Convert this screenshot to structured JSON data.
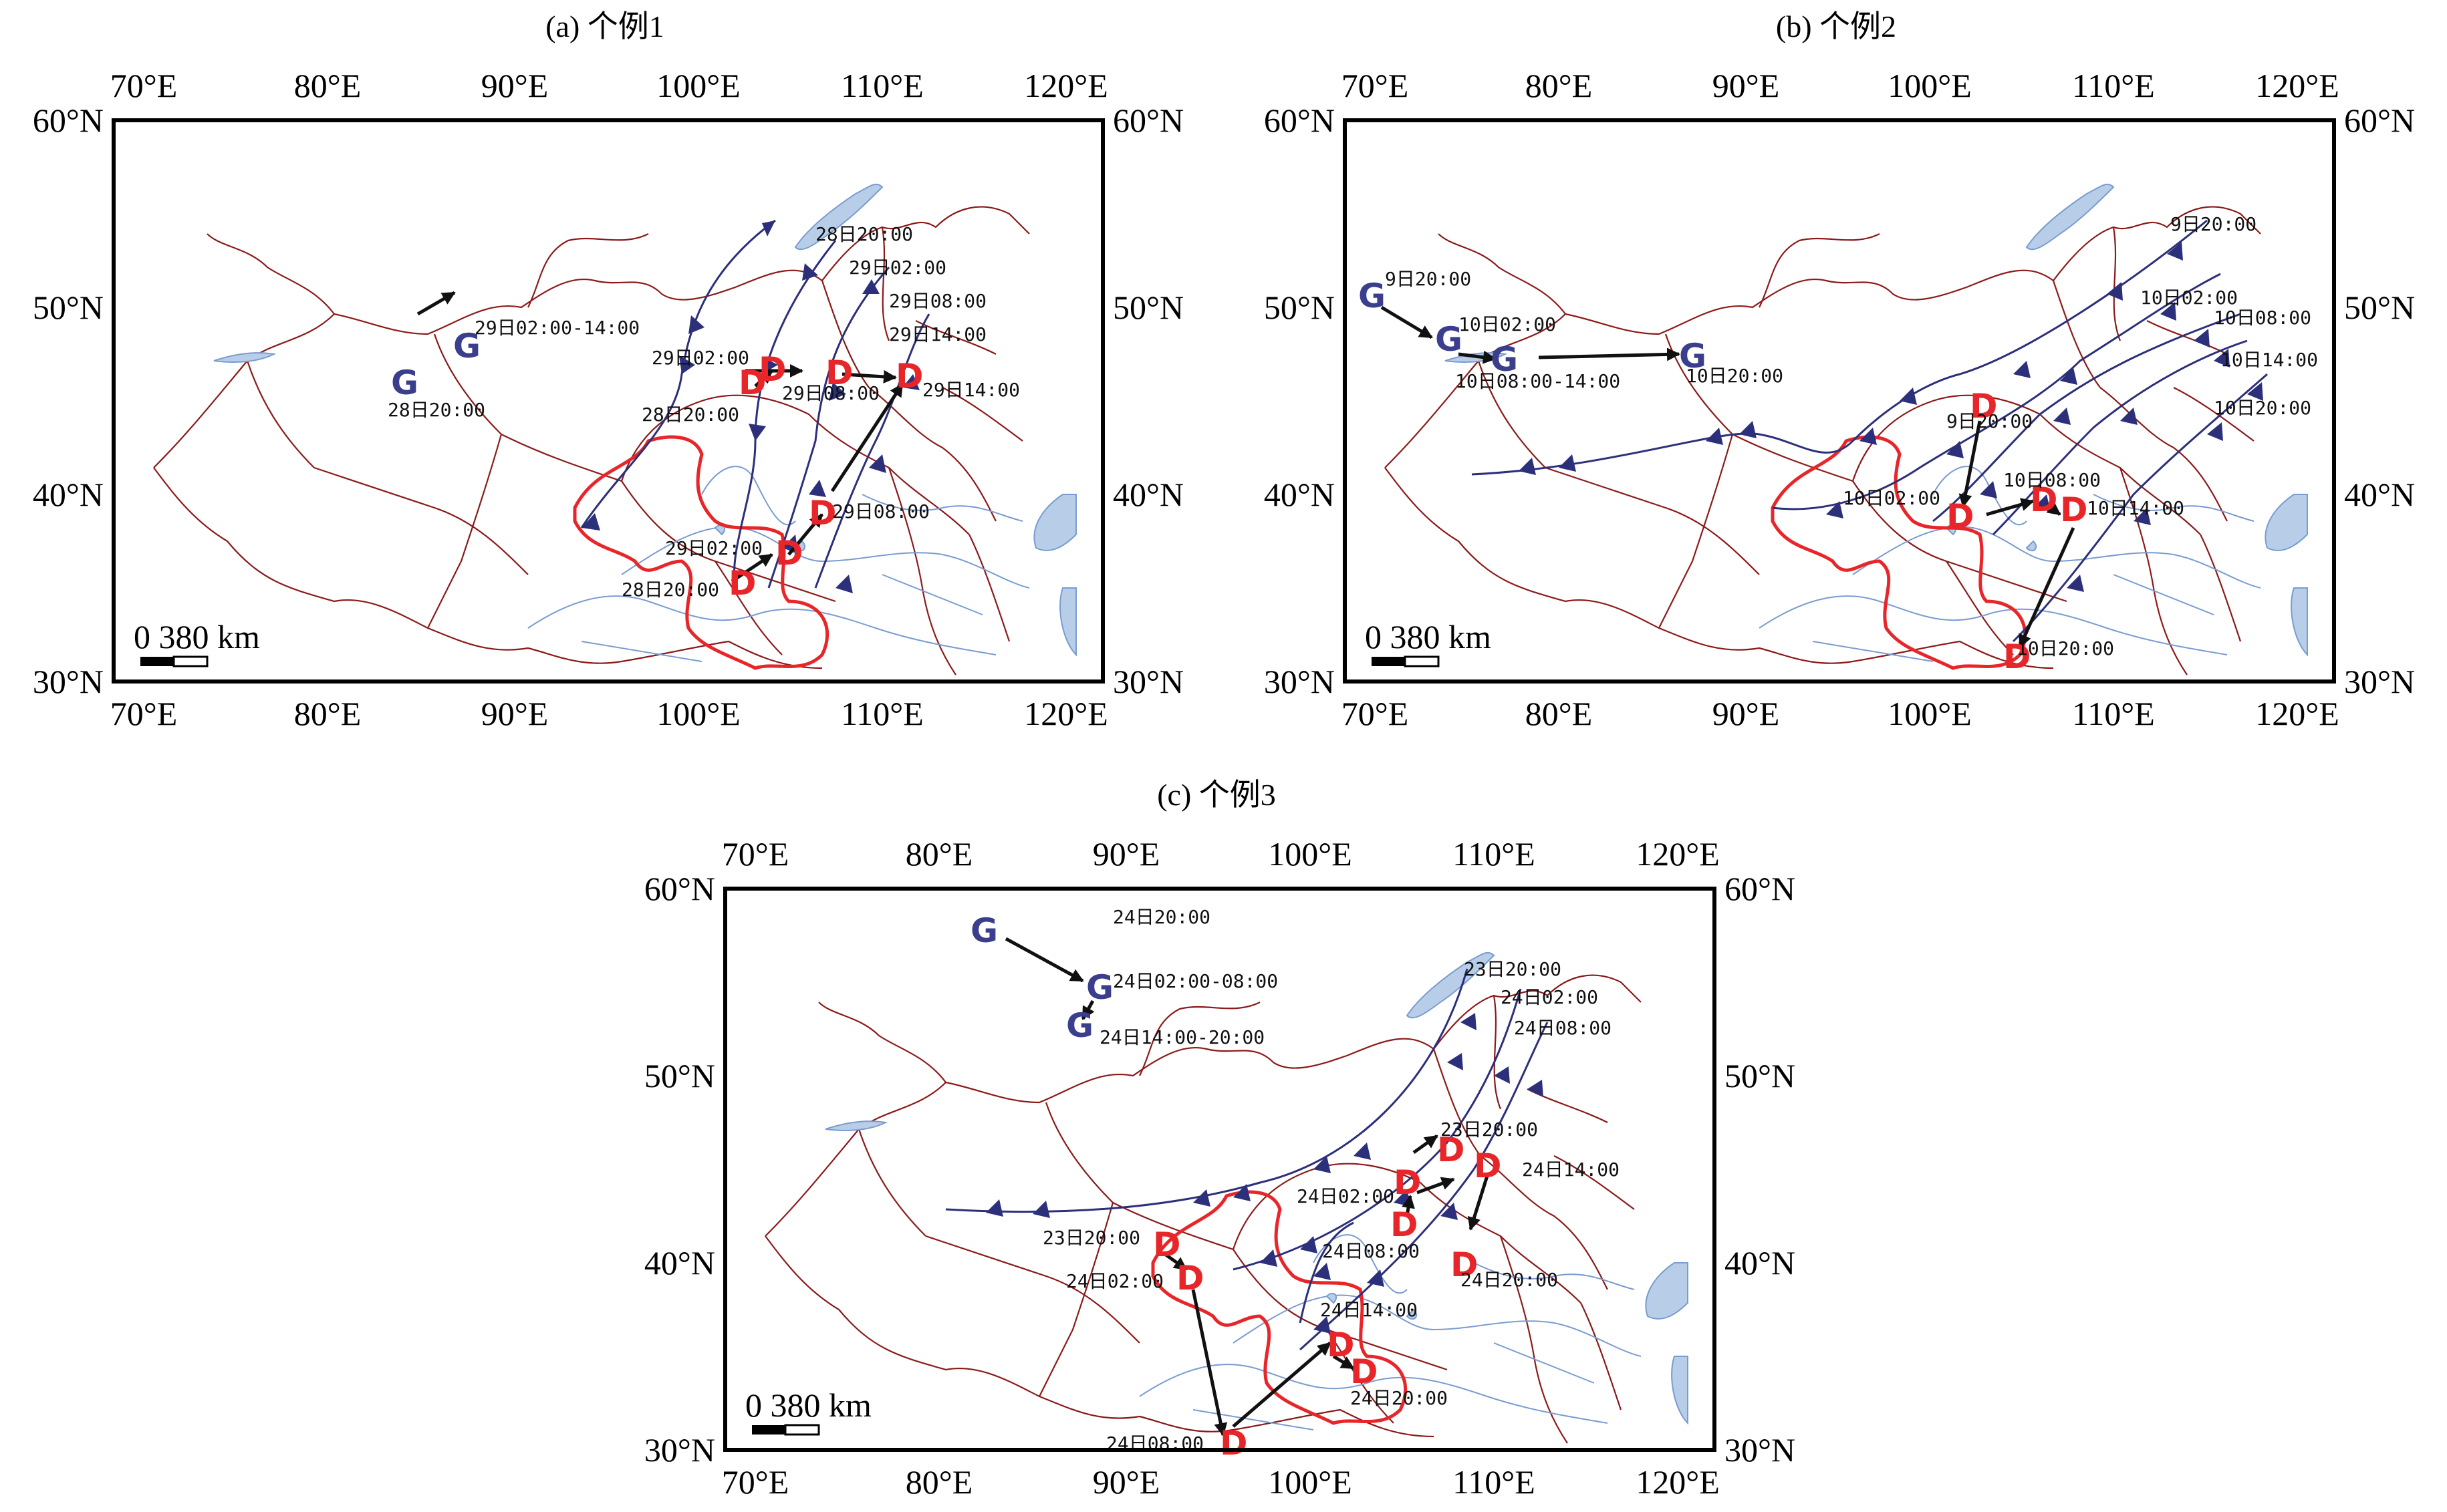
{
  "panels": [
    {
      "id": "a",
      "title": "(a) 个例1",
      "scale_label": "0   380 km",
      "labels": [
        "28日20:00",
        "29日02:00",
        "29日08:00",
        "29日14:00",
        "29日02:00-14:00",
        "28日20:00",
        "29日02:00",
        "29日08:00",
        "29日14:00",
        "28日20:00",
        "29日02:00",
        "29日08:00",
        "28日20:00"
      ],
      "letters": [
        "G",
        "G",
        "D",
        "D",
        "D",
        "D",
        "D",
        "D",
        "D"
      ]
    },
    {
      "id": "b",
      "title": "(b) 个例2",
      "scale_label": "0   380 km",
      "labels": [
        "9日20:00",
        "10日02:00",
        "10日08:00-14:00",
        "10日20:00",
        "9日20:00",
        "10日02:00",
        "10日08:00",
        "10日14:00",
        "10日20:00",
        "9日20:00",
        "10日02:00",
        "10日08:00",
        "10日14:00",
        "10日20:00"
      ],
      "letters": [
        "G",
        "G",
        "G",
        "G",
        "D",
        "D",
        "D",
        "D",
        "D"
      ]
    },
    {
      "id": "c",
      "title": "(c) 个例3",
      "scale_label": "0   380 km",
      "labels": [
        "24日20:00",
        "24日02:00-08:00",
        "24日14:00-20:00",
        "23日20:00",
        "24日02:00",
        "24日08:00",
        "23日20:00",
        "24日14:00",
        "24日02:00",
        "24日08:00",
        "24日20:00",
        "23日20:00",
        "24日02:00",
        "24日14:00",
        "24日20:00",
        "24日08:00"
      ],
      "letters": [
        "G",
        "G",
        "G",
        "D",
        "D",
        "D",
        "D",
        "D",
        "D",
        "D",
        "D",
        "D",
        "D"
      ]
    }
  ],
  "axes": {
    "lon_ticks": [
      "70°E",
      "80°E",
      "90°E",
      "100°E",
      "110°E",
      "120°E"
    ],
    "lat_ticks_left": [
      "60°N",
      "50°N",
      "40°N",
      "30°N"
    ],
    "lat_ticks_right": [
      "60°N",
      "50°N",
      "40°N",
      "30°N"
    ]
  }
}
